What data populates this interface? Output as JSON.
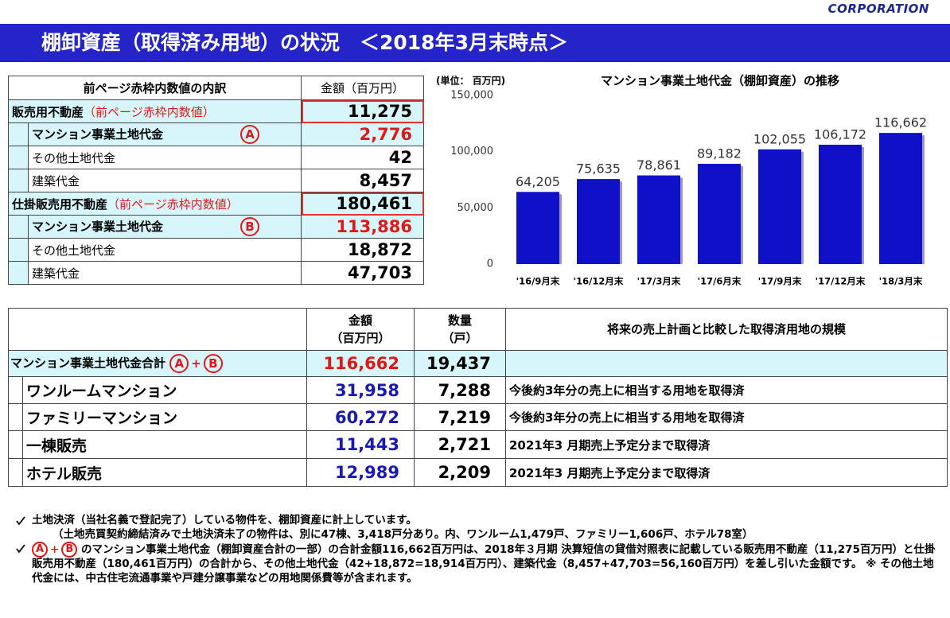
{
  "logo": "CORPORATION",
  "title": "棚卸資産（取得済み用地）の状況　＜2018年3月末時点＞",
  "breakdown_table": {
    "header": [
      "前ページ赤枠内数値の内訳",
      "金額（百万円）"
    ],
    "rows": [
      {
        "label": "販売用不動産",
        "note": "（前ページ赤枠内数値）",
        "value": "11,275"
      },
      {
        "label": "マンション事業土地代金",
        "marker": "A",
        "value": "2,776"
      },
      {
        "label": "その他土地代金",
        "value": "42"
      },
      {
        "label": "建築代金",
        "value": "8,457"
      },
      {
        "label": "仕掛販売用不動産",
        "note": "（前ページ赤枠内数値）",
        "value": "180,461"
      },
      {
        "label": "マンション事業土地代金",
        "marker": "B",
        "value": "113,886"
      },
      {
        "label": "その他土地代金",
        "value": "18,872"
      },
      {
        "label": "建築代金",
        "value": "47,703"
      }
    ]
  },
  "chart_data": {
    "type": "bar",
    "title": "マンション事業土地代金（棚卸資産）の推移",
    "unit_label": "(単位： 百万円)",
    "categories": [
      "'16/9月末",
      "'16/12月末",
      "'17/3月末",
      "'17/6月末",
      "'17/9月末",
      "'17/12月末",
      "'18/3月末"
    ],
    "values": [
      64205,
      75635,
      78861,
      89182,
      102055,
      106172,
      116662
    ],
    "value_labels": [
      "64,205",
      "75,635",
      "78,861",
      "89,182",
      "102,055",
      "106,172",
      "116,662"
    ],
    "color": "#1010c8",
    "ylim": [
      0,
      150000
    ],
    "yticks": [
      0,
      {
        "value": 50000,
        "label": "50,000"
      },
      {
        "value": 100000,
        "label": "100,000"
      },
      {
        "value": 150000,
        "label": "150,000"
      }
    ],
    "grid": false
  },
  "summary_table": {
    "header": {
      "amount": [
        "金額",
        "（百万円）"
      ],
      "quantity": [
        "数量",
        "（戸）"
      ],
      "scale": "将来の売上計画と比較した取得済用地の規模"
    },
    "total": {
      "label": "マンション事業土地代金合計",
      "markers": [
        "A",
        "+",
        "B"
      ],
      "amount": "116,662",
      "quantity": "19,437"
    },
    "rows": [
      {
        "label": "ワンルームマンション",
        "amount": "31,958",
        "quantity": "7,288",
        "scale": "今後約3年分の売上に相当する用地を取得済"
      },
      {
        "label": "ファミリーマンション",
        "amount": "60,272",
        "quantity": "7,219",
        "scale": "今後約3年分の売上に相当する用地を取得済"
      },
      {
        "label": "一棟販売",
        "amount": "11,443",
        "quantity": "2,721",
        "scale": "2021年3 月期売上予定分まで取得済"
      },
      {
        "label": "ホテル販売",
        "amount": "12,989",
        "quantity": "2,209",
        "scale": "2021年3 月期売上予定分まで取得済"
      }
    ]
  },
  "notes": [
    {
      "text": "土地決済（当社名義で登記完了）している物件を、棚卸資産に計上しています。"
    },
    {
      "text": "（土地売買契約締結済みで土地決済未了の物件は、別に47棟、3,418戸分あり。内、ワンルーム1,479戸、ファミリー1,606戸、ホテル78室）"
    },
    {
      "markers": [
        "A",
        "+",
        "B"
      ],
      "text": "のマンション事業土地代金（棚卸資産合計の一部）の合計金額116,662百万円は、2018年３月期 決算短信の貸借対照表に記載している販売用不動産（11,275百万円）と仕掛販売用不動産（180,461百万円）の合計から、その他土地代金（42+18,872=18,914百万円）、建築代金（8,457+47,703=56,160百万円）を差し引いた金額です。 ※ その他土地代金には、中古住宅流通事業や戸建分譲事業などの用地関係費等が含まれます。"
    }
  ]
}
